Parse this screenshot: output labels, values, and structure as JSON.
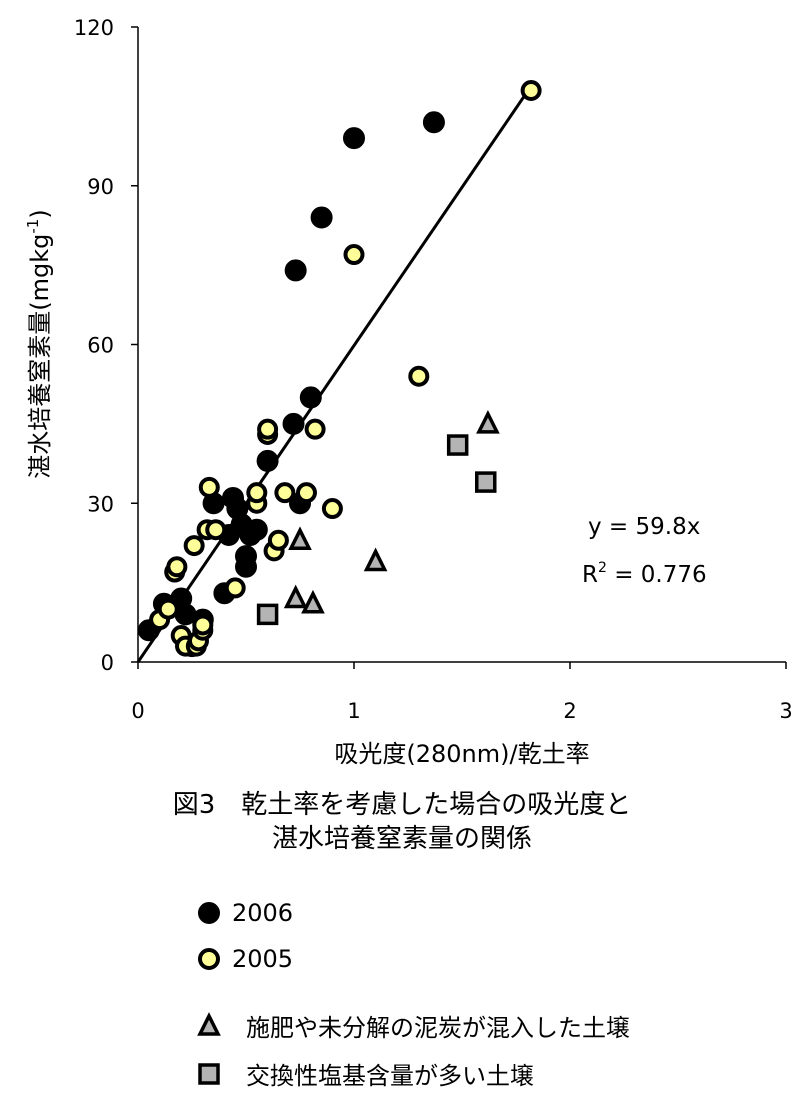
{
  "chart_data": {
    "type": "scatter",
    "title": "",
    "xlabel": "吸光度(280nm)/乾土率",
    "ylabel": "湛水培養窒素量(mgkg",
    "ylabel_sup": "-1",
    "ylabel_close": ")",
    "xlim": [
      0,
      3
    ],
    "ylim": [
      0,
      120
    ],
    "xticks": [
      "0",
      "1",
      "2",
      "3"
    ],
    "yticks": [
      "0",
      "30",
      "60",
      "90",
      "120"
    ],
    "grid": false,
    "series": [
      {
        "name": "2006",
        "marker": "circle",
        "color": "#000000",
        "x": [
          0.05,
          0.12,
          0.2,
          0.22,
          0.25,
          0.3,
          0.35,
          0.4,
          0.42,
          0.44,
          0.46,
          0.48,
          0.5,
          0.5,
          0.52,
          0.55,
          0.6,
          0.72,
          0.73,
          0.75,
          0.8,
          0.85,
          1.0,
          1.37
        ],
        "y": [
          6,
          11,
          12,
          9,
          3,
          8,
          30,
          13,
          24,
          31,
          29,
          26,
          20,
          18,
          24,
          25,
          38,
          45,
          74,
          30,
          50,
          84,
          99,
          102
        ]
      },
      {
        "name": "2005",
        "marker": "circle",
        "color": "#ffff99",
        "x": [
          0.1,
          0.14,
          0.17,
          0.18,
          0.2,
          0.22,
          0.26,
          0.27,
          0.28,
          0.3,
          0.3,
          0.32,
          0.33,
          0.36,
          0.45,
          0.55,
          0.55,
          0.6,
          0.6,
          0.63,
          0.65,
          0.68,
          0.78,
          0.82,
          0.9,
          1.0,
          1.3,
          1.82
        ],
        "y": [
          8,
          10,
          17,
          18,
          5,
          3,
          22,
          3,
          4,
          6,
          7,
          25,
          33,
          25,
          14,
          30,
          32,
          43,
          44,
          21,
          23,
          32,
          32,
          44,
          29,
          77,
          54,
          108
        ]
      },
      {
        "name": "施肥や未分解の泥炭が混入した土壌",
        "marker": "triangle",
        "color": "#b4b4b4",
        "x": [
          0.73,
          0.75,
          0.81,
          1.1,
          1.62
        ],
        "y": [
          12,
          23,
          11,
          19,
          45
        ]
      },
      {
        "name": "交換性塩基含量が多い土壌",
        "marker": "square",
        "color": "#b4b4b4",
        "x": [
          0.6,
          1.48,
          1.61
        ],
        "y": [
          9,
          41,
          34
        ]
      }
    ],
    "regression": {
      "slope": 59.8,
      "x_range": [
        0,
        1.82
      ],
      "equation": "y = 59.8x",
      "r2_label": "R",
      "r2_sup": "2",
      "r2_value": " = 0.776"
    }
  },
  "caption": {
    "line1": "図3　乾土率を考慮した場合の吸光度と",
    "line2": "湛水培養窒素量の関係"
  },
  "legend": {
    "items": [
      {
        "label": "2006"
      },
      {
        "label": "2005"
      },
      {
        "label": "施肥や未分解の泥炭が混入した土壌"
      },
      {
        "label": "交換性塩基含量が多い土壌"
      }
    ]
  }
}
